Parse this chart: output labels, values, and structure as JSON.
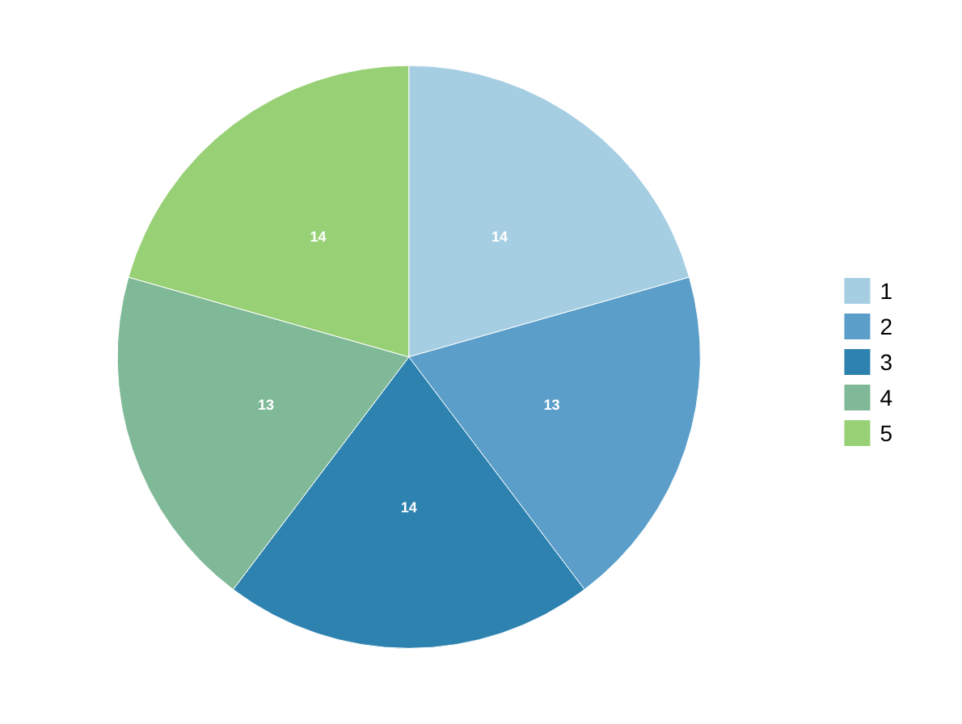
{
  "chart_data": {
    "type": "pie",
    "categories": [
      "1",
      "2",
      "3",
      "4",
      "5"
    ],
    "values": [
      14,
      13,
      14,
      13,
      14
    ],
    "colors": [
      "#a6cee3",
      "#5b9ec9",
      "#2d82b0",
      "#7fb997",
      "#98d076"
    ],
    "data_labels": true,
    "legend": "right"
  }
}
